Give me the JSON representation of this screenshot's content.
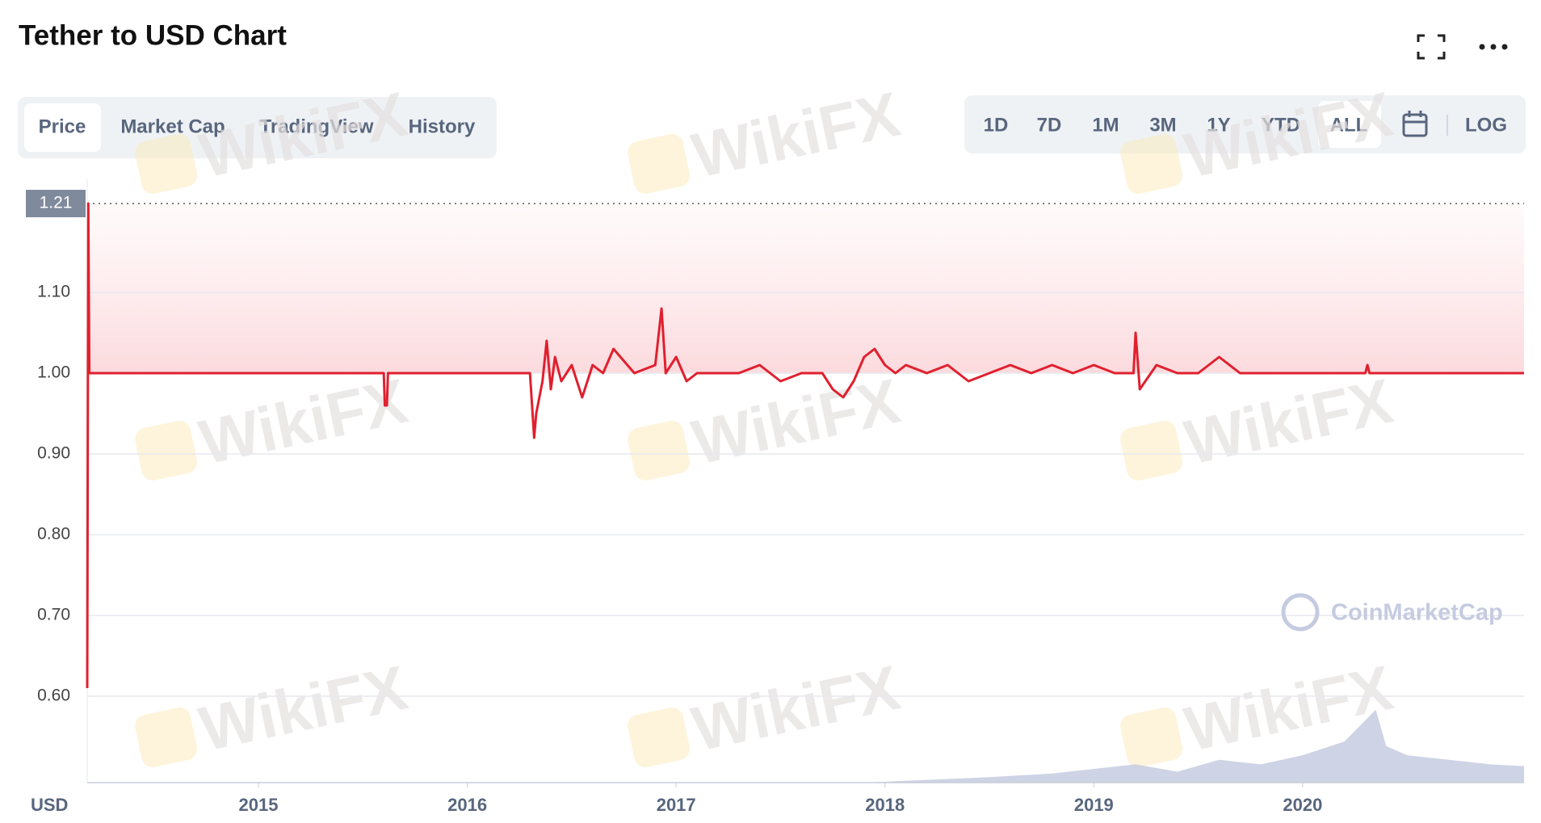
{
  "header": {
    "title": "Tether to USD Chart"
  },
  "tabs": [
    "Price",
    "Market Cap",
    "TradingView",
    "History"
  ],
  "ranges": [
    "1D",
    "7D",
    "1M",
    "3M",
    "1Y",
    "YTD",
    "ALL"
  ],
  "scale_button": "LOG",
  "watermark": "WikiFX",
  "brand": "CoinMarketCap",
  "chart_data": {
    "type": "line",
    "y_unit": "USD",
    "max_price": 1.21,
    "x": [
      2014.18,
      2014.185,
      2014.19,
      2015.6,
      2015.605,
      2015.615,
      2015.62,
      2016.3,
      2016.32,
      2016.33,
      2016.36,
      2016.38,
      2016.4,
      2016.42,
      2016.45,
      2016.5,
      2016.55,
      2016.6,
      2016.65,
      2016.7,
      2016.8,
      2016.9,
      2016.93,
      2016.95,
      2017.0,
      2017.05,
      2017.1,
      2017.2,
      2017.3,
      2017.4,
      2017.5,
      2017.6,
      2017.7,
      2017.75,
      2017.8,
      2017.85,
      2017.9,
      2017.95,
      2018.0,
      2018.05,
      2018.1,
      2018.2,
      2018.3,
      2018.4,
      2018.5,
      2018.6,
      2018.7,
      2018.8,
      2018.9,
      2019.0,
      2019.1,
      2019.19,
      2019.2,
      2019.22,
      2019.3,
      2019.4,
      2019.5,
      2019.6,
      2019.7,
      2019.8,
      2020.0,
      2020.3,
      2020.31,
      2020.32,
      2020.6,
      2020.8,
      2021.06
    ],
    "series": [
      {
        "name": "Price",
        "color": "#e0202e",
        "values": [
          0.61,
          1.21,
          1.0,
          1.0,
          0.96,
          0.96,
          1.0,
          1.0,
          0.92,
          0.95,
          0.99,
          1.04,
          0.98,
          1.02,
          0.99,
          1.01,
          0.97,
          1.01,
          1.0,
          1.03,
          1.0,
          1.01,
          1.08,
          1.0,
          1.02,
          0.99,
          1.0,
          1.0,
          1.0,
          1.01,
          0.99,
          1.0,
          1.0,
          0.98,
          0.97,
          0.99,
          1.02,
          1.03,
          1.01,
          1.0,
          1.01,
          1.0,
          1.01,
          0.99,
          1.0,
          1.01,
          1.0,
          1.01,
          1.0,
          1.01,
          1.0,
          1.0,
          1.05,
          0.98,
          1.01,
          1.0,
          1.0,
          1.02,
          1.0,
          1.0,
          1.0,
          1.0,
          1.01,
          1.0,
          1.0,
          1.0,
          1.0
        ]
      }
    ],
    "volume": {
      "color": "#c5cbe0",
      "ylim": [
        0,
        100
      ],
      "x": [
        2017.9,
        2018.2,
        2018.5,
        2018.8,
        2019.0,
        2019.2,
        2019.4,
        2019.6,
        2019.8,
        2020.0,
        2020.2,
        2020.35,
        2020.4,
        2020.5,
        2020.7,
        2020.9,
        2021.06
      ],
      "values": [
        0,
        3,
        6,
        10,
        15,
        20,
        12,
        25,
        20,
        30,
        45,
        80,
        40,
        30,
        25,
        20,
        18
      ]
    },
    "xlim": [
      2014.18,
      2021.06
    ],
    "xticks": [
      2015,
      2016,
      2017,
      2018,
      2019,
      2020
    ],
    "ylim": [
      0.493,
      1.24
    ],
    "yticks": [
      {
        "value": 0.6,
        "label": "0.60"
      },
      {
        "value": 0.7,
        "label": "0.70"
      },
      {
        "value": 0.8,
        "label": "0.80"
      },
      {
        "value": 0.9,
        "label": "0.90"
      },
      {
        "value": 1.0,
        "label": "1.00"
      },
      {
        "value": 1.1,
        "label": "1.10"
      }
    ],
    "grid": true
  }
}
